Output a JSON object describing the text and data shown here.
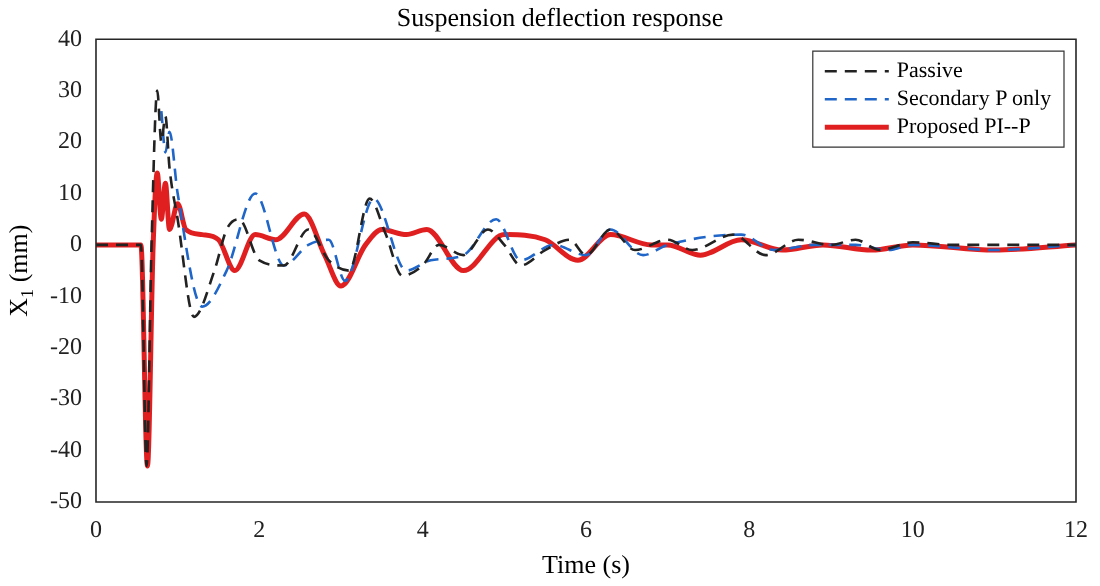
{
  "chart_data": {
    "type": "line",
    "title": "Suspension deflection response",
    "xlabel": "Time (s)",
    "ylabel": "X$_{1}$ (mm)",
    "xlim": [
      0,
      12
    ],
    "xticks": [
      0,
      2,
      4,
      6,
      8,
      10,
      12
    ],
    "ylim": [
      -50,
      40
    ],
    "yticks": [
      -50,
      -40,
      -30,
      -20,
      -10,
      0,
      10,
      20,
      30,
      40
    ],
    "grid": false,
    "legend": "top right",
    "marker": "none",
    "series": [
      {
        "name": "Passive",
        "color": "#222222",
        "line_style": "dashed",
        "x": [
          0,
          0.55,
          0.62,
          0.68,
          0.75,
          0.8,
          0.85,
          0.9,
          1.0,
          1.2,
          1.45,
          1.6,
          1.75,
          2.0,
          2.3,
          2.6,
          2.85,
          3.1,
          3.35,
          3.55,
          3.75,
          4.0,
          4.2,
          4.5,
          4.8,
          5.0,
          5.2,
          5.5,
          5.8,
          6.0,
          6.3,
          6.6,
          7.0,
          7.3,
          7.8,
          8.2,
          8.6,
          9.0,
          9.3,
          9.6,
          10,
          10.5,
          11,
          12
        ],
        "values": [
          0,
          0,
          -43,
          0,
          30,
          20,
          25,
          15,
          5,
          -14,
          -5,
          3,
          5,
          -3,
          -4,
          3,
          -3,
          -5,
          9,
          2,
          -6,
          -4,
          0,
          -2,
          3,
          0,
          -4,
          -1,
          1,
          -2,
          3,
          -1,
          1,
          -1,
          2,
          -2,
          1,
          0,
          1,
          -1,
          0.5,
          0,
          0,
          0
        ]
      },
      {
        "name": "Secondary P only",
        "color": "#1f66c8",
        "line_style": "dashed",
        "x": [
          0.8,
          0.85,
          0.9,
          1.0,
          1.3,
          1.6,
          1.95,
          2.3,
          2.6,
          2.85,
          3.05,
          3.4,
          3.8,
          4.1,
          4.5,
          4.9,
          5.2,
          5.6,
          6.0,
          6.3,
          6.7,
          7.0,
          7.9,
          8.3,
          8.8,
          9.3,
          9.7,
          10,
          11,
          12
        ],
        "values": [
          26,
          18,
          22,
          10,
          -12,
          -5,
          10,
          -4,
          0,
          1,
          -7,
          9,
          -5,
          -3,
          -2,
          5,
          -3,
          0,
          -2,
          3,
          -2,
          0,
          2,
          -1,
          0,
          0,
          -1,
          0,
          -1,
          0
        ]
      },
      {
        "name": "Proposed PI--P",
        "color": "#e02020",
        "line_style": "solid",
        "x": [
          0,
          0.55,
          0.63,
          0.7,
          0.75,
          0.8,
          0.85,
          0.9,
          1.0,
          1.1,
          1.3,
          1.5,
          1.7,
          1.95,
          2.2,
          2.55,
          2.8,
          3.0,
          3.3,
          3.5,
          3.8,
          4.05,
          4.5,
          5.0,
          5.5,
          5.9,
          6.3,
          6.8,
          7.0,
          7.4,
          7.9,
          8.4,
          8.9,
          9.5,
          10,
          11,
          12
        ],
        "values": [
          0,
          0,
          -43,
          0,
          14,
          5,
          12,
          3,
          8,
          3,
          2,
          1,
          -5,
          2,
          1,
          6,
          -2,
          -8,
          0,
          3,
          2,
          3,
          -5,
          2,
          1,
          -3,
          2,
          0,
          0,
          -2,
          1,
          -1,
          0,
          -1,
          0,
          -1,
          0
        ]
      }
    ]
  }
}
